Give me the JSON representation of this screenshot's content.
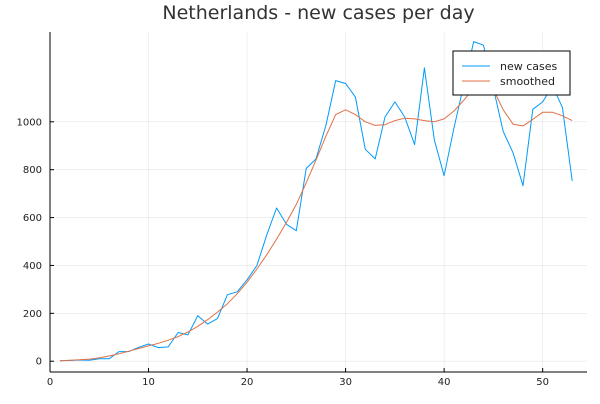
{
  "chart_data": {
    "type": "line",
    "title": "Netherlands - new cases per day",
    "xlabel": "",
    "ylabel": "",
    "xlim": [
      0,
      54.5
    ],
    "ylim": [
      -45,
      1375
    ],
    "xticks": [
      0,
      10,
      20,
      30,
      40,
      50
    ],
    "yticks": [
      0,
      200,
      400,
      600,
      800,
      1000
    ],
    "grid": true,
    "legend_position": "top-right",
    "series": [
      {
        "name": "new cases",
        "color": "#009af9",
        "x": [
          1,
          2,
          3,
          4,
          5,
          6,
          7,
          8,
          9,
          10,
          11,
          12,
          13,
          14,
          15,
          16,
          17,
          18,
          19,
          20,
          21,
          22,
          23,
          24,
          25,
          26,
          27,
          28,
          29,
          30,
          31,
          32,
          33,
          34,
          35,
          36,
          37,
          38,
          39,
          40,
          41,
          42,
          43,
          44,
          45,
          46,
          47,
          48,
          49,
          50,
          51,
          52,
          53
        ],
        "values": [
          2,
          3,
          5,
          4,
          10,
          10,
          40,
          40,
          58,
          72,
          57,
          60,
          120,
          110,
          190,
          155,
          178,
          278,
          290,
          340,
          400,
          528,
          640,
          572,
          545,
          805,
          845,
          985,
          1172,
          1160,
          1103,
          885,
          845,
          1020,
          1083,
          1020,
          905,
          1225,
          925,
          775,
          975,
          1155,
          1335,
          1320,
          1140,
          960,
          870,
          733,
          1052,
          1083,
          1150,
          1060,
          753
        ]
      },
      {
        "name": "smoothed",
        "color": "#e26f46",
        "x": [
          1,
          2,
          3,
          4,
          5,
          6,
          7,
          8,
          9,
          10,
          11,
          12,
          13,
          14,
          15,
          16,
          17,
          18,
          19,
          20,
          21,
          22,
          23,
          24,
          25,
          26,
          27,
          28,
          29,
          30,
          31,
          32,
          33,
          34,
          35,
          36,
          37,
          38,
          39,
          40,
          41,
          42,
          43,
          44,
          45,
          46,
          47,
          48,
          49,
          50,
          51,
          52,
          53
        ],
        "values": [
          2,
          4,
          6,
          9,
          14,
          22,
          31,
          42,
          53,
          64,
          75,
          88,
          103,
          122,
          146,
          174,
          205,
          240,
          282,
          330,
          385,
          445,
          510,
          580,
          655,
          745,
          840,
          940,
          1030,
          1050,
          1030,
          1000,
          985,
          988,
          1005,
          1015,
          1012,
          1005,
          1000,
          1012,
          1045,
          1090,
          1140,
          1170,
          1135,
          1050,
          990,
          983,
          1010,
          1040,
          1040,
          1025,
          1005
        ]
      }
    ]
  }
}
